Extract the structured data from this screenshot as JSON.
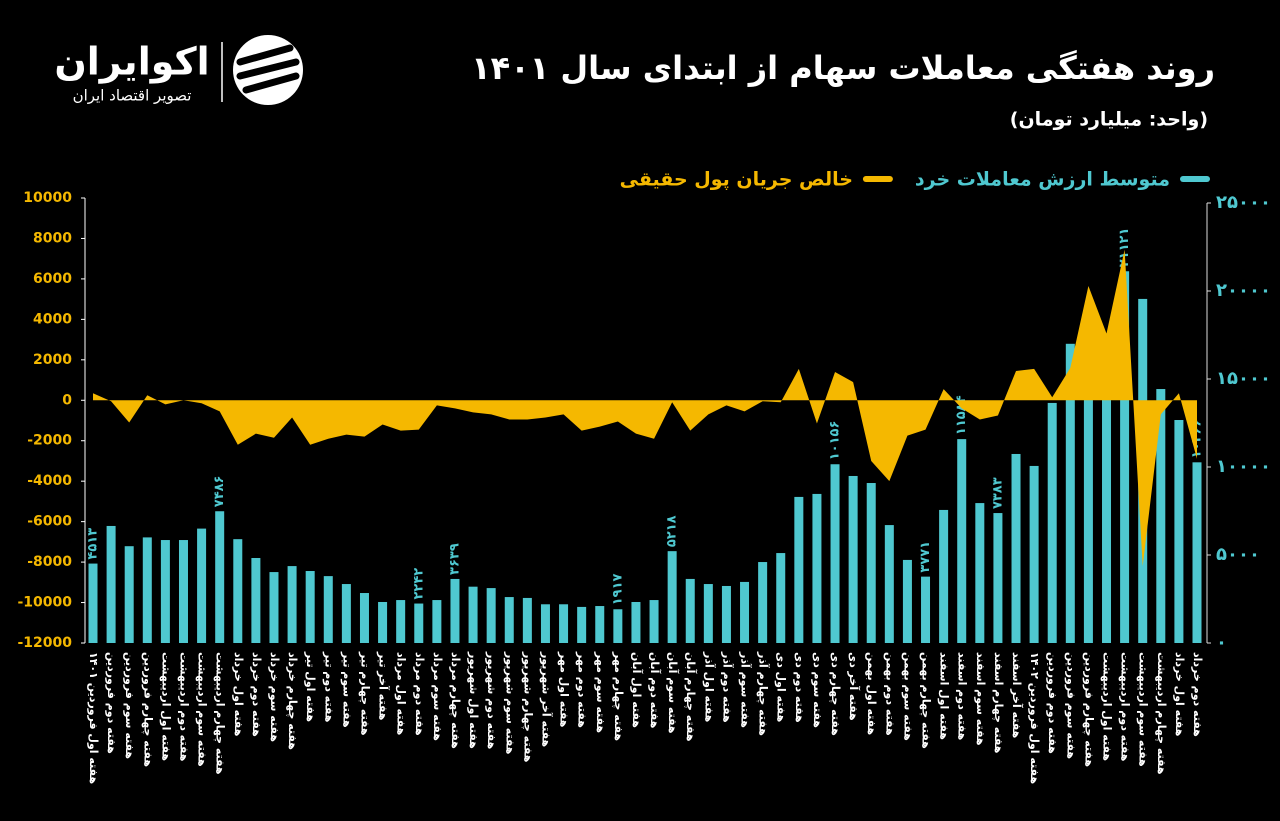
{
  "brand": {
    "name": "اکوایران",
    "tagline": "تصویر اقتصاد ایران"
  },
  "chart_data": {
    "type": "bar-area",
    "title": "روند هفتگی معاملات سهام از ابتدای سال ۱۴۰۱",
    "subtitle": "(واحد: میلیارد تومان)",
    "legend": "top",
    "categories": [
      "هفته اول فروردین ۱۴۰۱",
      "هفته دوم فروردین",
      "هفته سوم فروردین",
      "هفته چهارم فروردین",
      "هفته اول اردیبهشت",
      "هفته دوم اردیبهشت",
      "هفته سوم اردیبهشت",
      "هفته چهارم اردیبهشت",
      "هفته اول خرداد",
      "هفته دوم خرداد",
      "هفته سوم خرداد",
      "هفته چهارم خرداد",
      "هفته اول تیر",
      "هفته دوم تیر",
      "هفته سوم تیر",
      "هفته چهارم تیر",
      "هفته آخر تیر",
      "هفته اول مرداد",
      "هفته دوم مرداد",
      "هفته سوم مرداد",
      "هفته چهارم مرداد",
      "هفته اول شهریور",
      "هفته دوم شهریور",
      "هفته سوم شهریور",
      "هفته چهارم شهریور",
      "هفته آخر شهریور",
      "هفته اول مهر",
      "هفته دوم مهر",
      "هفته سوم مهر",
      "هفته چهارم مهر",
      "هفته اول آبان",
      "هفته دوم آبان",
      "هفته سوم آبان",
      "هفته چهارم آبان",
      "هفته اول آذر",
      "هفته دوم آذر",
      "هفته سوم آذر",
      "هفته چهارم آذر",
      "هفته اول دی",
      "هفته دوم دی",
      "هفته سوم دی",
      "هفته چهارم دی",
      "هفته آخر دی",
      "هفته اول بهمن",
      "هفته دوم بهمن",
      "هفته سوم بهمن",
      "هفته چهارم بهمن",
      "هفته اول اسفند",
      "هفته دوم اسفند",
      "هفته سوم اسفند",
      "هفته چهارم اسفند",
      "هفته آخر اسفند",
      "هفته اول فروردین ۱۴۰۲",
      "هفته دوم فروردین",
      "هفته سوم فروردین",
      "هفته چهارم فروردین",
      "هفته اول اردیبهشت",
      "هفته دوم اردیبهشت",
      "هفته سوم اردیبهشت",
      "هفته چهارم اردیبهشت",
      "هفته اول خرداد",
      "هفته دوم خرداد"
    ],
    "series": [
      {
        "name": "متوسط ارزش معاملات خرد",
        "color": "#4fc8d0",
        "kind": "bar",
        "axis": "y2",
        "values": [
          4513,
          6650,
          5500,
          6000,
          5850,
          5850,
          6500,
          7486,
          5900,
          4830,
          4030,
          4370,
          4090,
          3800,
          3350,
          2840,
          2330,
          2440,
          2242,
          2440,
          3639,
          3200,
          3120,
          2610,
          2560,
          2200,
          2200,
          2050,
          2100,
          1917,
          2330,
          2440,
          5218,
          3640,
          3350,
          3240,
          3470,
          4600,
          5110,
          8300,
          8470,
          10156,
          9490,
          9090,
          6700,
          4720,
          3771,
          7560,
          11584,
          7950,
          7383,
          10740,
          10060,
          13640,
          17000,
          17800,
          17560,
          21121,
          19550,
          14430,
          12670,
          10266
        ],
        "value_labels": [
          "۴۵۱۳",
          null,
          null,
          null,
          null,
          null,
          null,
          "۷۴۸۶",
          null,
          null,
          null,
          null,
          null,
          null,
          null,
          null,
          null,
          null,
          "۲۲۴۲",
          null,
          "۳۶۳۹",
          null,
          null,
          null,
          null,
          null,
          null,
          null,
          null,
          "۱۹۱۷",
          null,
          null,
          "۵۲۱۸",
          null,
          null,
          null,
          null,
          null,
          null,
          null,
          null,
          "۱۰۱۵۶",
          null,
          null,
          null,
          null,
          "۳۷۷۱",
          null,
          "۱۱۵۸۴",
          null,
          "۷۳۸۳",
          null,
          null,
          null,
          null,
          null,
          null,
          "۲۱۱۲۱",
          null,
          null,
          null,
          "۱۰۲۶۶"
        ]
      },
      {
        "name": "خالص جریان پول حقیقی",
        "color": "#f5b800",
        "kind": "area",
        "axis": "y",
        "values": [
          350,
          -50,
          -1100,
          250,
          -200,
          0,
          -150,
          -550,
          -2200,
          -1650,
          -1850,
          -850,
          -2200,
          -1900,
          -1700,
          -1800,
          -1200,
          -1500,
          -1450,
          -250,
          -400,
          -600,
          -700,
          -950,
          -950,
          -850,
          -700,
          -1500,
          -1300,
          -1050,
          -1650,
          -1900,
          -100,
          -1500,
          -700,
          -250,
          -550,
          -50,
          -100,
          1550,
          -1150,
          1400,
          900,
          -3000,
          -4000,
          -1750,
          -1450,
          550,
          -400,
          -950,
          -750,
          1450,
          1550,
          150,
          1600,
          5650,
          3300,
          7450,
          -8200,
          -700,
          350,
          -2900
        ]
      }
    ],
    "ylim": [
      -12000,
      10000
    ],
    "yticks": [
      10000,
      8000,
      6000,
      4000,
      2000,
      0,
      -2000,
      -4000,
      -6000,
      -8000,
      -10000,
      -12000
    ],
    "y2lim": [
      0,
      25000
    ],
    "y2ticks": [
      {
        "value": 25000,
        "label": "۲۵۰۰۰"
      },
      {
        "value": 20000,
        "label": "۲۰۰۰۰"
      },
      {
        "value": 15000,
        "label": "۱۵۰۰۰"
      },
      {
        "value": 10000,
        "label": "۱۰۰۰۰"
      },
      {
        "value": 5000,
        "label": "۵۰۰۰"
      },
      {
        "value": 0,
        "label": "۰"
      }
    ],
    "grid": false
  }
}
